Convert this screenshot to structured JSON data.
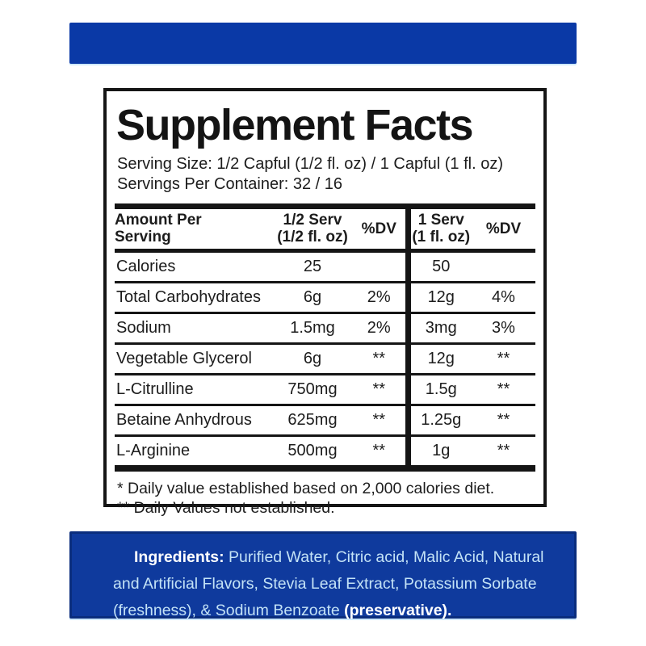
{
  "colors": {
    "top_bar": "#0a39a6",
    "bottom_bar": "#0f3a9d",
    "bottom_bar_border": "#0a2d7d",
    "ink": "#151515",
    "ingredients_text": "#c3e2f6",
    "ingredients_label": "#ffffff",
    "light_edge": "#cfe9fb"
  },
  "panel": {
    "title": "Supplement Facts",
    "serving_size": "Serving Size: 1/2 Capful (1/2 fl. oz) / 1 Capful (1 fl. oz)",
    "servings_per_container": "Servings Per Container: 32 / 16",
    "table": {
      "header": {
        "amount_line1": "Amount Per",
        "amount_line2": "Serving",
        "half_line1": "1/2 Serv",
        "half_line2": "(1/2 fl. oz)",
        "half_dv": "%DV",
        "full_line1": "1 Serv",
        "full_line2": "(1 fl. oz)",
        "full_dv": "%DV"
      },
      "rows": [
        {
          "name": "Calories",
          "half_amount": "25",
          "half_dv": "",
          "full_amount": "50",
          "full_dv": ""
        },
        {
          "name": "Total Carbohydrates",
          "half_amount": "6g",
          "half_dv": "2%",
          "full_amount": "12g",
          "full_dv": "4%"
        },
        {
          "name": "Sodium",
          "half_amount": "1.5mg",
          "half_dv": "2%",
          "full_amount": "3mg",
          "full_dv": "3%"
        },
        {
          "name": "Vegetable Glycerol",
          "half_amount": "6g",
          "half_dv": "**",
          "full_amount": "12g",
          "full_dv": "**"
        },
        {
          "name": "L-Citrulline",
          "half_amount": "750mg",
          "half_dv": "**",
          "full_amount": "1.5g",
          "full_dv": "**"
        },
        {
          "name": "Betaine Anhydrous",
          "half_amount": "625mg",
          "half_dv": "**",
          "full_amount": "1.25g",
          "full_dv": "**"
        },
        {
          "name": "L-Arginine",
          "half_amount": "500mg",
          "half_dv": "**",
          "full_amount": "1g",
          "full_dv": "**"
        }
      ]
    },
    "footnotes": {
      "line1": "* Daily value established based on 2,000 calories diet.",
      "line2": "** Daily Values not established."
    }
  },
  "ingredients": {
    "label": "Ingredients:",
    "line1_rest": " Purified Water, Citric acid, Malic Acid, Natural",
    "line2": "and Artificial Flavors, Stevia Leaf Extract, Potassium Sorbate",
    "line3_pre": "(freshness), & Sodium Benzoate ",
    "line3_bold": "(preservative)."
  }
}
